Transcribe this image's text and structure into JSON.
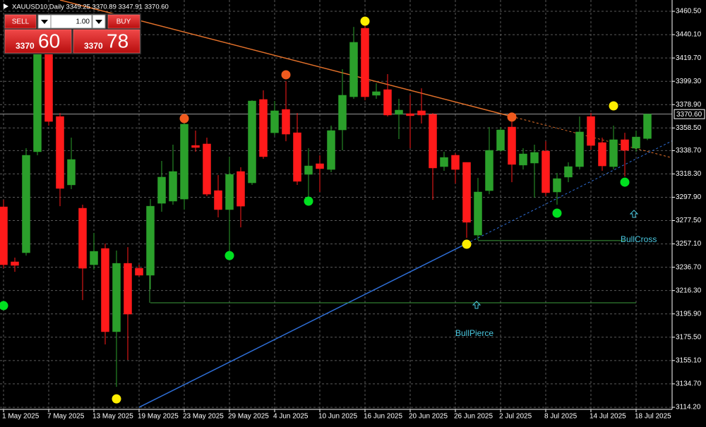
{
  "header": "XAUUSD10,Daily  3349.25 3370.89 3347.91 3370.60",
  "trade_panel": {
    "sell": "SELL",
    "buy": "BUY",
    "lots": "1.00",
    "bid": {
      "big_figure": "3370",
      "pips": "60"
    },
    "ask": {
      "big_figure": "3370",
      "pips": "78"
    }
  },
  "chart_data": {
    "type": "candlestick",
    "up_color": "#2ba02b",
    "down_color": "#ff1a1a",
    "categories": [
      "1 May 2025",
      null,
      null,
      null,
      "7 May 2025",
      null,
      null,
      null,
      "13 May 2025",
      null,
      null,
      null,
      "19 May 2025",
      null,
      null,
      null,
      "23 May 2025",
      null,
      null,
      null,
      "29 May 2025",
      null,
      null,
      null,
      "4 Jun 2025",
      null,
      null,
      null,
      "10 Jun 2025",
      null,
      null,
      null,
      "16 Jun 2025",
      null,
      null,
      null,
      "20 Jun 2025",
      null,
      null,
      null,
      "26 Jun 2025",
      null,
      null,
      null,
      "2 Jul 2025",
      null,
      null,
      null,
      "8 Jul 2025",
      null,
      null,
      null,
      "14 Jul 2025",
      null,
      null,
      null,
      "18 Jul 2025",
      null
    ],
    "open": [
      3289.5,
      3241.4,
      3249.4,
      3337.7,
      3424.1,
      3368.5,
      3308.7,
      3288.3,
      3238.9,
      3253.1,
      3180.3,
      3240.1,
      3235.8,
      3229.7,
      3292.6,
      3294.5,
      3296.3,
      3343.2,
      3344.5,
      3303.7,
      3287.1,
      3320.4,
      3310.5,
      3383.4,
      3354.3,
      3374.7,
      3354.3,
      3317.9,
      3327.2,
      3322.2,
      3356.8,
      3385.8,
      3445.7,
      3387.1,
      3392.0,
      3370.4,
      3371.0,
      3373.5,
      3370.4,
      3324.7,
      3334.6,
      3328.4,
      3264.8,
      3303.7,
      3338.9,
      3359.3,
      3326.0,
      3327.8,
      3338.3,
      3302.5,
      3315.5,
      3324.7,
      3368.5,
      3345.7,
      3324.7,
      3348.2,
      3340.8,
      3349.25
    ],
    "high": [
      3295.7,
      3245.1,
      3340.8,
      3430.3,
      3427.2,
      3371.6,
      3350.0,
      3291.4,
      3266.7,
      3257.4,
      3251.3,
      3254.3,
      3238.9,
      3296.3,
      3329.7,
      3343.9,
      3365.5,
      3356.2,
      3350.0,
      3317.3,
      3333.4,
      3324.1,
      3382.7,
      3391.4,
      3382.1,
      3399.4,
      3371.6,
      3340.8,
      3334.6,
      3360.5,
      3409.9,
      3446.9,
      3451.9,
      3397.6,
      3405.6,
      3384.0,
      3387.1,
      3393.2,
      3371.6,
      3337.7,
      3336.4,
      3328.4,
      3314.8,
      3359.3,
      3359.3,
      3368.5,
      3340.8,
      3343.9,
      3346.9,
      3319.2,
      3328.4,
      3368.5,
      3371.6,
      3350.0,
      3360.5,
      3354.3,
      3356.2,
      3370.89
    ],
    "low": [
      3235.8,
      3232.7,
      3246.9,
      3334.6,
      3360.5,
      3290.1,
      3305.0,
      3208.0,
      3234.6,
      3169.2,
      3132.1,
      3155.6,
      3228.4,
      3217.3,
      3285.2,
      3291.4,
      3287.1,
      3337.7,
      3298.8,
      3280.3,
      3246.9,
      3271.6,
      3308.7,
      3331.5,
      3351.9,
      3346.9,
      3308.7,
      3295.1,
      3302.5,
      3319.8,
      3338.9,
      3384.0,
      3382.7,
      3384.0,
      3368.5,
      3348.8,
      3340.8,
      3362.4,
      3295.7,
      3321.0,
      3309.9,
      3262.4,
      3260.5,
      3300.6,
      3337.7,
      3311.1,
      3322.2,
      3297.6,
      3298.8,
      3291.4,
      3311.1,
      3322.2,
      3339.5,
      3321.0,
      3322.2,
      3316.1,
      3337.7,
      3347.91
    ],
    "close": [
      3238.9,
      3238.3,
      3334.6,
      3424.1,
      3364.2,
      3305.6,
      3330.9,
      3235.8,
      3250.6,
      3180.3,
      3240.1,
      3195.7,
      3229.7,
      3290.1,
      3315.5,
      3320.4,
      3361.8,
      3341.4,
      3300.6,
      3287.1,
      3317.9,
      3290.1,
      3382.1,
      3333.4,
      3373.5,
      3353.1,
      3311.8,
      3325.3,
      3322.9,
      3356.2,
      3387.1,
      3433.4,
      3385.8,
      3390.2,
      3369.8,
      3374.1,
      3369.2,
      3369.8,
      3323.5,
      3332.7,
      3322.2,
      3276.0,
      3302.5,
      3338.9,
      3356.8,
      3326.6,
      3335.8,
      3337.1,
      3301.9,
      3314.2,
      3324.7,
      3355.0,
      3343.2,
      3325.3,
      3348.2,
      3338.9,
      3350.6,
      3370.6
    ],
    "ylim": [
      3112.4,
      3470.4
    ],
    "yticks": [
      {
        "value": 3460.5,
        "label": "3460.50"
      },
      {
        "value": 3440.1,
        "label": "3440.10"
      },
      {
        "value": 3419.7,
        "label": "3419.70"
      },
      {
        "value": 3399.3,
        "label": "3399.30"
      },
      {
        "value": 3378.9,
        "label": "3378.90"
      },
      {
        "value": 3358.5,
        "label": "3358.50"
      },
      {
        "value": 3338.7,
        "label": "3338.70"
      },
      {
        "value": 3318.3,
        "label": "3318.30"
      },
      {
        "value": 3297.9,
        "label": "3297.90"
      },
      {
        "value": 3277.5,
        "label": "3277.50"
      },
      {
        "value": 3257.1,
        "label": "3257.10"
      },
      {
        "value": 3236.7,
        "label": "3236.70"
      },
      {
        "value": 3216.3,
        "label": "3216.30"
      },
      {
        "value": 3195.9,
        "label": "3195.90"
      },
      {
        "value": 3175.5,
        "label": "3175.50"
      },
      {
        "value": 3155.1,
        "label": "3155.10"
      },
      {
        "value": 3134.7,
        "label": "3134.70"
      },
      {
        "value": 3114.2,
        "label": "3114.20"
      }
    ],
    "current_price": {
      "value": 3370.6,
      "label": "3370.60"
    },
    "grid": true,
    "trendlines": [
      {
        "color": "#e2702a",
        "from": {
          "index": 5,
          "price": 3470.4
        },
        "to": {
          "index": 45,
          "price": 3368.5
        }
      },
      {
        "color": "#2f6fd8",
        "from": {
          "index": 12,
          "price": 3114.2
        },
        "to": {
          "index": 41,
          "price": 3257.4
        }
      }
    ],
    "markers": [
      {
        "index": 32,
        "price": 3451.9,
        "color": "#ffee00"
      },
      {
        "index": 54,
        "price": 3377.8,
        "color": "#ffee00"
      },
      {
        "index": 41,
        "price": 3256.8,
        "color": "#ffee00"
      },
      {
        "index": 10,
        "price": 3121.6,
        "color": "#ffee00"
      },
      {
        "index": 25,
        "price": 3405.0,
        "color": "#f05a1e"
      },
      {
        "index": 16,
        "price": 3366.7,
        "color": "#f05a1e"
      },
      {
        "index": 45,
        "price": 3368.0,
        "color": "#f05a1e"
      },
      {
        "index": 0,
        "price": 3203.1,
        "color": "#00e020"
      },
      {
        "index": 20,
        "price": 3246.9,
        "color": "#00e020"
      },
      {
        "index": 27,
        "price": 3294.5,
        "color": "#00e020"
      },
      {
        "index": 49,
        "price": 3284.0,
        "color": "#00e020"
      },
      {
        "index": 55,
        "price": 3311.1,
        "color": "#00e020"
      }
    ],
    "annotations": [
      {
        "text": "BullCross",
        "price": 3260.0,
        "start": 42,
        "end": 55
      },
      {
        "text": "BullPierce",
        "price": 3205.6,
        "start": 13,
        "end": 56
      }
    ]
  }
}
